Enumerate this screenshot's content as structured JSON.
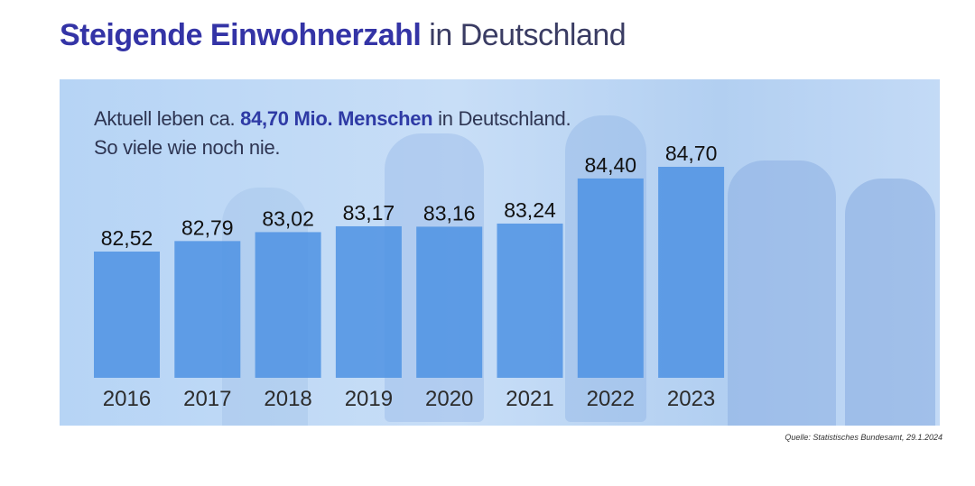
{
  "title": {
    "bold": "Steigende Einwohnerzahl",
    "rest": " in Deutschland"
  },
  "subtitle": {
    "line1_pre": "Aktuell leben ca. ",
    "line1_highlight": "84,70 Mio. Menschen",
    "line1_post": " in Deutschland.",
    "line2": "So viele wie noch nie."
  },
  "source": "Quelle: Statistisches Bundesamt, 29.1.2024",
  "colors": {
    "bar": "#4d92e3",
    "title_bold": "#3434a6",
    "highlight": "#2e3aa5",
    "label": "#111111",
    "tick": "#2c2c2c"
  },
  "chart_data": {
    "type": "bar",
    "categories": [
      "2016",
      "2017",
      "2018",
      "2019",
      "2020",
      "2021",
      "2022",
      "2023"
    ],
    "values": [
      82.52,
      82.79,
      83.02,
      83.17,
      83.16,
      83.24,
      84.4,
      84.7
    ],
    "data_labels": [
      "82,52",
      "82,79",
      "83,02",
      "83,17",
      "83,16",
      "83,24",
      "84,40",
      "84,70"
    ],
    "title": "",
    "xlabel": "",
    "ylabel": "",
    "grid": false,
    "legend": "none"
  }
}
